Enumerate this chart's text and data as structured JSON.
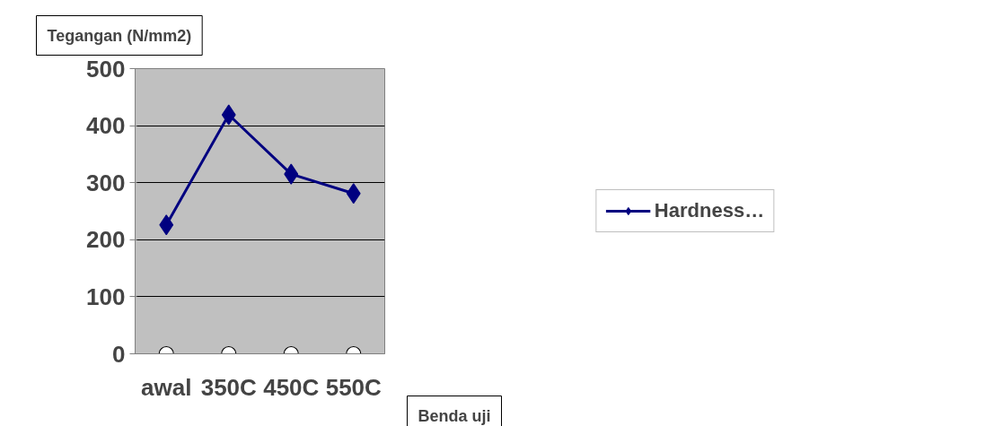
{
  "chart_data": {
    "type": "line",
    "ylabel": "Tegangan (N/mm2)",
    "xlabel": "Benda uji",
    "categories": [
      "awal",
      "350C",
      "450C",
      "550C"
    ],
    "series": [
      {
        "name": "Hardness…",
        "color": "#000080",
        "values": [
          226,
          419,
          315,
          281
        ],
        "marker": "diamond"
      },
      {
        "type": "scatter",
        "color": "#ffffff",
        "values": [
          0,
          0,
          0,
          0
        ],
        "marker": "circle"
      }
    ],
    "ylim": [
      0,
      500
    ],
    "yticks": [
      0,
      100,
      200,
      300,
      400,
      500
    ],
    "grid": "y",
    "legend": "right",
    "line_style": "solid"
  }
}
